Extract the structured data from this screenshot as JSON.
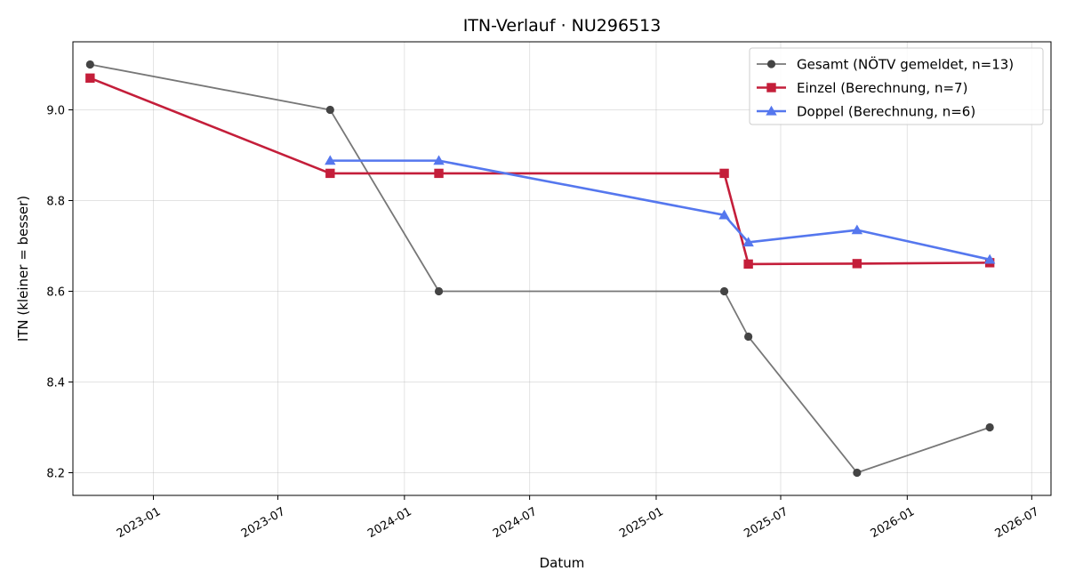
{
  "chart_data": {
    "type": "line",
    "title": "ITN-Verlauf · NU296513",
    "xlabel": "Datum",
    "ylabel": "ITN  (kleiner = besser)",
    "x_axis_type": "date",
    "xlim": [
      "2022-09-06",
      "2026-07-29"
    ],
    "ylim": [
      8.15,
      9.15
    ],
    "x_ticks": [
      "2023-01",
      "2023-07",
      "2024-01",
      "2024-07",
      "2025-01",
      "2025-07",
      "2026-01",
      "2026-07"
    ],
    "y_ticks": [
      8.2,
      8.4,
      8.6,
      8.8,
      9.0
    ],
    "y_tick_labels": [
      "8.2",
      "8.4",
      "8.6",
      "8.8",
      "9.0"
    ],
    "grid": true,
    "legend_position": "top-right",
    "series": [
      {
        "name": "Gesamt (NÖTV gemeldet, n=13)",
        "color": "#777777",
        "marker_color": "#444444",
        "marker": "circle",
        "points": [
          {
            "x": "2022-10-01",
            "y": 9.1
          },
          {
            "x": "2023-09-15",
            "y": 9.0
          },
          {
            "x": "2024-02-20",
            "y": 8.6
          },
          {
            "x": "2025-04-10",
            "y": 8.6
          },
          {
            "x": "2025-05-15",
            "y": 8.5
          },
          {
            "x": "2025-10-20",
            "y": 8.2
          },
          {
            "x": "2026-05-01",
            "y": 8.3
          }
        ]
      },
      {
        "name": "Einzel (Berechnung, n=7)",
        "color": "#c41e3a",
        "marker": "square",
        "points": [
          {
            "x": "2022-10-01",
            "y": 9.07
          },
          {
            "x": "2023-09-15",
            "y": 8.86
          },
          {
            "x": "2024-02-20",
            "y": 8.86
          },
          {
            "x": "2025-04-10",
            "y": 8.86
          },
          {
            "x": "2025-05-15",
            "y": 8.66
          },
          {
            "x": "2025-10-20",
            "y": 8.661
          },
          {
            "x": "2026-05-01",
            "y": 8.663
          }
        ]
      },
      {
        "name": "Doppel (Berechnung, n=6)",
        "color": "#5577ee",
        "marker": "triangle",
        "points": [
          {
            "x": "2023-09-15",
            "y": 8.888
          },
          {
            "x": "2024-02-20",
            "y": 8.888
          },
          {
            "x": "2025-04-10",
            "y": 8.768
          },
          {
            "x": "2025-05-15",
            "y": 8.708
          },
          {
            "x": "2025-10-20",
            "y": 8.735
          },
          {
            "x": "2026-05-01",
            "y": 8.67
          }
        ]
      }
    ]
  }
}
